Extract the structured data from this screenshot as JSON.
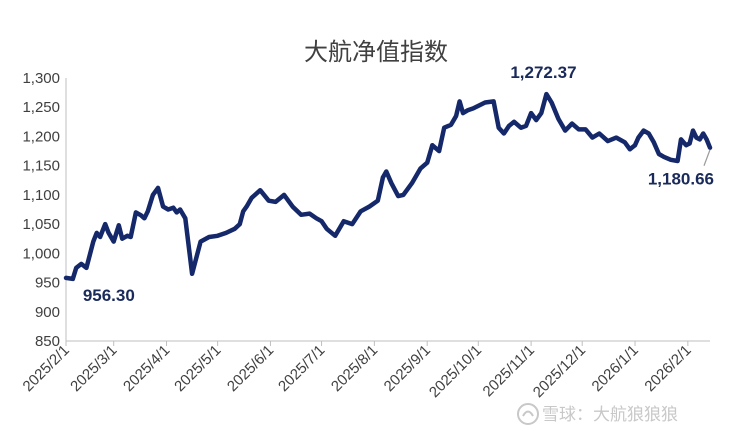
{
  "chart_data": {
    "type": "line",
    "title": "大航净值指数",
    "ylim": [
      850,
      1300
    ],
    "yticks": [
      "850",
      "900",
      "950",
      "1,000",
      "1,050",
      "1,100",
      "1,150",
      "1,200",
      "1,250",
      "1,300"
    ],
    "xtick_labels": [
      "2025/2/1",
      "2025/3/1",
      "2025/4/1",
      "2025/5/1",
      "2025/6/1",
      "2025/7/1",
      "2025/8/1",
      "2025/9/1",
      "2025/10/1",
      "2025/11/1",
      "2025/12/1",
      "2026/1/1",
      "2026/2/1"
    ],
    "line_color": "#14286a",
    "grid": false,
    "series": [
      {
        "x": [
          "2025-02-01",
          "2025-02-05",
          "2025-02-07",
          "2025-02-10",
          "2025-02-13",
          "2025-02-17",
          "2025-02-19",
          "2025-02-21",
          "2025-02-24",
          "2025-02-26",
          "2025-03-01",
          "2025-03-04",
          "2025-03-06",
          "2025-03-09",
          "2025-03-11",
          "2025-03-14",
          "2025-03-17",
          "2025-03-19",
          "2025-03-21",
          "2025-03-24",
          "2025-03-27",
          "2025-03-30",
          "2025-04-02",
          "2025-04-05",
          "2025-04-07",
          "2025-04-09",
          "2025-04-12",
          "2025-04-16",
          "2025-04-21",
          "2025-04-26",
          "2025-05-01",
          "2025-05-06",
          "2025-05-11",
          "2025-05-14",
          "2025-05-16",
          "2025-05-18",
          "2025-05-21",
          "2025-05-26",
          "2025-05-31",
          "2025-06-04",
          "2025-06-09",
          "2025-06-14",
          "2025-06-19",
          "2025-06-24",
          "2025-06-28",
          "2025-07-01",
          "2025-07-04",
          "2025-07-09",
          "2025-07-14",
          "2025-07-19",
          "2025-07-24",
          "2025-07-29",
          "2025-08-03",
          "2025-08-06",
          "2025-08-08",
          "2025-08-11",
          "2025-08-15",
          "2025-08-18",
          "2025-08-23",
          "2025-08-28",
          "2025-09-01",
          "2025-09-04",
          "2025-09-08",
          "2025-09-11",
          "2025-09-15",
          "2025-09-18",
          "2025-09-20",
          "2025-09-22",
          "2025-09-25",
          "2025-09-28",
          "2025-10-05",
          "2025-10-10",
          "2025-10-13",
          "2025-10-16",
          "2025-10-19",
          "2025-10-22",
          "2025-10-26",
          "2025-10-29",
          "2025-11-01",
          "2025-11-04",
          "2025-11-07",
          "2025-11-10",
          "2025-11-13",
          "2025-11-17",
          "2025-11-21",
          "2025-11-25",
          "2025-11-29",
          "2025-12-03",
          "2025-12-07",
          "2025-12-11",
          "2025-12-16",
          "2025-12-21",
          "2025-12-26",
          "2025-12-29",
          "2026-01-01",
          "2026-01-03",
          "2026-01-06",
          "2026-01-09",
          "2026-01-12",
          "2026-01-15",
          "2026-01-18",
          "2026-01-22",
          "2026-01-26",
          "2026-01-28",
          "2026-01-31",
          "2026-02-02",
          "2026-02-04",
          "2026-02-06",
          "2026-02-08",
          "2026-02-10",
          "2026-02-12",
          "2026-02-14"
        ],
        "y": [
          958,
          956.3,
          975,
          982,
          975,
          1020,
          1035,
          1028,
          1050,
          1035,
          1020,
          1048,
          1025,
          1030,
          1028,
          1070,
          1065,
          1060,
          1072,
          1100,
          1112,
          1080,
          1075,
          1078,
          1070,
          1075,
          1060,
          965,
          1020,
          1028,
          1030,
          1035,
          1042,
          1050,
          1072,
          1080,
          1095,
          1108,
          1090,
          1088,
          1100,
          1080,
          1066,
          1068,
          1060,
          1055,
          1042,
          1030,
          1055,
          1050,
          1072,
          1080,
          1090,
          1130,
          1140,
          1120,
          1098,
          1100,
          1120,
          1145,
          1155,
          1185,
          1175,
          1215,
          1220,
          1235,
          1260,
          1240,
          1245,
          1248,
          1258,
          1260,
          1215,
          1205,
          1218,
          1225,
          1215,
          1218,
          1240,
          1228,
          1240,
          1272.37,
          1258,
          1230,
          1210,
          1222,
          1212,
          1212,
          1198,
          1205,
          1192,
          1198,
          1190,
          1178,
          1185,
          1198,
          1210,
          1205,
          1190,
          1170,
          1165,
          1160,
          1158,
          1195,
          1185,
          1188,
          1210,
          1198,
          1195,
          1205,
          1195,
          1180.66
        ]
      }
    ],
    "annotations": {
      "min_label": "956.30",
      "max_label": "1,272.37",
      "last_label": "1,180.66"
    }
  },
  "watermark": "雪球：大航狼狼狼"
}
